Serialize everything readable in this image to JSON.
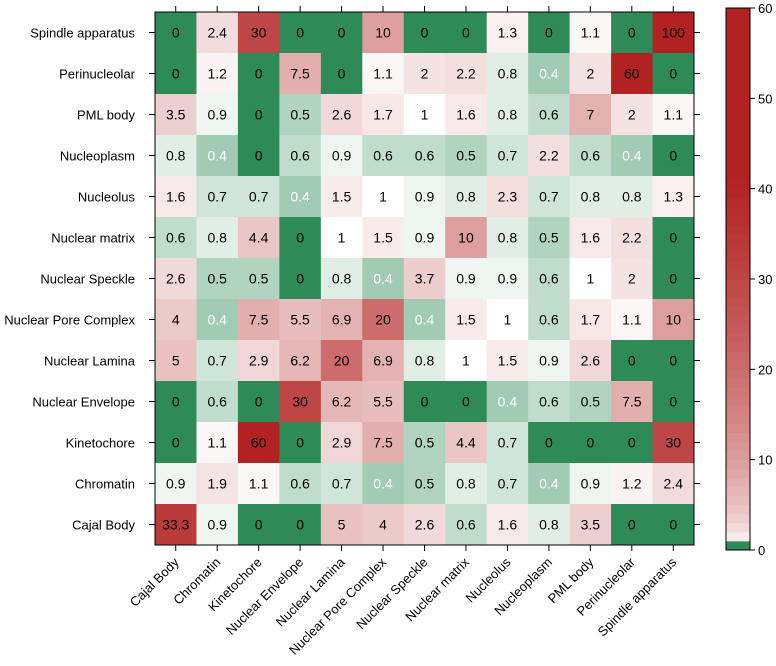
{
  "chart_data": {
    "type": "heatmap",
    "title": "",
    "xlabel": "",
    "ylabel": "",
    "columns": [
      "Cajal Body",
      "Chromatin",
      "Kinetochore",
      "Nuclear Envelope",
      "Nuclear Lamina",
      "Nuclear Pore Complex",
      "Nuclear Speckle",
      "Nuclear matrix",
      "Nucleolus",
      "Nucleoplasm",
      "PML body",
      "Perinucleolar",
      "Spindle apparatus"
    ],
    "rows": [
      "Spindle apparatus",
      "Perinucleolar",
      "PML body",
      "Nucleoplasm",
      "Nucleolus",
      "Nuclear matrix",
      "Nuclear Speckle",
      "Nuclear Pore Complex",
      "Nuclear Lamina",
      "Nuclear Envelope",
      "Kinetochore",
      "Chromatin",
      "Cajal Body"
    ],
    "values": [
      [
        "0",
        "2.4",
        "30",
        "0",
        "0",
        "10",
        "0",
        "0",
        "1.3",
        "0",
        "1.1",
        "0",
        "100"
      ],
      [
        "0",
        "1.2",
        "0",
        "7.5",
        "0",
        "1.1",
        "2",
        "2.2",
        "0.8",
        "0.4",
        "2",
        "60",
        "0"
      ],
      [
        "3.5",
        "0.9",
        "0",
        "0.5",
        "2.6",
        "1.7",
        "1",
        "1.6",
        "0.8",
        "0.6",
        "7",
        "2",
        "1.1"
      ],
      [
        "0.8",
        "0.4",
        "0",
        "0.6",
        "0.9",
        "0.6",
        "0.6",
        "0.5",
        "0.7",
        "2.2",
        "0.6",
        "0.4",
        "0"
      ],
      [
        "1.6",
        "0.7",
        "0.7",
        "0.4",
        "1.5",
        "1",
        "0.9",
        "0.8",
        "2.3",
        "0.7",
        "0.8",
        "0.8",
        "1.3"
      ],
      [
        "0.6",
        "0.8",
        "4.4",
        "0",
        "1",
        "1.5",
        "0.9",
        "10",
        "0.8",
        "0.5",
        "1.6",
        "2.2",
        "0"
      ],
      [
        "2.6",
        "0.5",
        "0.5",
        "0",
        "0.8",
        "0.4",
        "3.7",
        "0.9",
        "0.9",
        "0.6",
        "1",
        "2",
        "0"
      ],
      [
        "4",
        "0.4",
        "7.5",
        "5.5",
        "6.9",
        "20",
        "0.4",
        "1.5",
        "1",
        "0.6",
        "1.7",
        "1.1",
        "10"
      ],
      [
        "5",
        "0.7",
        "2.9",
        "6.2",
        "20",
        "6.9",
        "0.8",
        "1",
        "1.5",
        "0.9",
        "2.6",
        "0",
        "0"
      ],
      [
        "0",
        "0.6",
        "0",
        "30",
        "6.2",
        "5.5",
        "0",
        "0",
        "0.4",
        "0.6",
        "0.5",
        "7.5",
        "0"
      ],
      [
        "0",
        "1.1",
        "60",
        "0",
        "2.9",
        "7.5",
        "0.5",
        "4.4",
        "0.7",
        "0",
        "0",
        "0",
        "30"
      ],
      [
        "0.9",
        "1.9",
        "1.1",
        "0.6",
        "0.7",
        "0.4",
        "0.5",
        "0.8",
        "0.7",
        "0.4",
        "0.9",
        "1.2",
        "2.4"
      ],
      [
        "33.3",
        "0.9",
        "0",
        "0",
        "5",
        "4",
        "2.6",
        "0.6",
        "1.6",
        "0.8",
        "3.5",
        "0",
        "0"
      ]
    ],
    "colorbar": {
      "range": [
        0,
        60
      ],
      "ticks": [
        "0",
        "10",
        "20",
        "30",
        "40",
        "50",
        "60"
      ],
      "colors": {
        "low": "#2e8b57",
        "mid": "#ffffff",
        "high": "#b22222"
      }
    }
  }
}
